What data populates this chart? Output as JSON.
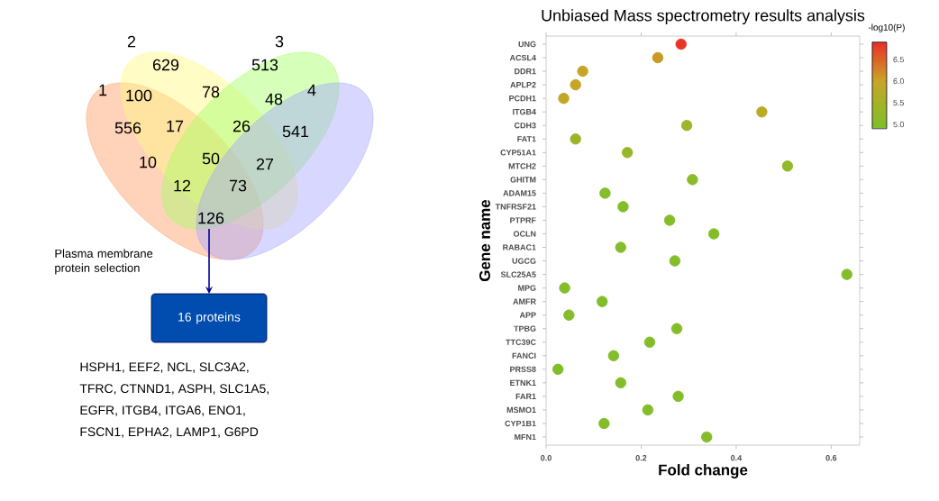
{
  "chart_data": [
    {
      "type": "other",
      "categories": [
        "1",
        "2",
        "3",
        "4"
      ],
      "annotations": [
        "629",
        "513",
        "100",
        "78",
        "48",
        "556",
        "17",
        "26",
        "541",
        "10",
        "50",
        "27",
        "12",
        "73",
        "126",
        "Plasma membrane protein selection",
        "16 proteins",
        "HSPH1, EEF2, NCL, SLC3A2,",
        "TFRC, CTNND1, ASPH, SLC1A5,",
        "EGFR, ITGB4, ITGA6, ENO1,",
        "FSCN1, EPHA2, LAMP1, G6PD"
      ]
    },
    {
      "type": "scatter",
      "title": "Unbiased Mass spectrometry results analysis",
      "xlabel": "Fold change",
      "ylabel": "Gene name",
      "clabel": "-log10(P)",
      "orientation": "horizontal",
      "categories": [
        "UNG",
        "ACSL4",
        "DDR1",
        "APLP2",
        "PCDH1",
        "ITGB4",
        "CDH3",
        "FAT1",
        "CYP51A1",
        "MTCH2",
        "GHITM",
        "ADAM15",
        "TNFRSF21",
        "PTPRF",
        "OCLN",
        "RABAC1",
        "UGCG",
        "SLC25A5",
        "MPG",
        "AMFR",
        "APP",
        "TPBG",
        "TTC39C",
        "FANCI",
        "PRSS8",
        "ETNK1",
        "FAR1",
        "MSMO1",
        "CYP1B1",
        "MFN1"
      ],
      "values": [
        0.284,
        0.235,
        0.077,
        0.062,
        0.037,
        0.454,
        0.296,
        0.062,
        0.171,
        0.508,
        0.308,
        0.124,
        0.162,
        0.26,
        0.353,
        0.157,
        0.271,
        0.633,
        0.039,
        0.118,
        0.048,
        0.275,
        0.218,
        0.142,
        0.025,
        0.157,
        0.278,
        0.214,
        0.122,
        0.338
      ],
      "cvalues": [
        6.85,
        6.1,
        6.0,
        6.0,
        5.9,
        5.8,
        5.4,
        5.3,
        5.3,
        5.2,
        5.1,
        5.0,
        5.0,
        5.0,
        5.0,
        5.0,
        5.0,
        5.0,
        5.0,
        5.0,
        5.0,
        5.0,
        5.0,
        5.0,
        5.0,
        5.0,
        5.0,
        5.0,
        5.0,
        5.0
      ],
      "xlim": [
        0,
        0.66
      ],
      "xticks": [
        {
          "value": 0,
          "label": "0.0"
        },
        {
          "value": 0.2,
          "label": "0.2"
        },
        {
          "value": 0.4,
          "label": "0.4"
        },
        {
          "value": 0.6,
          "label": "0.6"
        }
      ],
      "clim": [
        4.9,
        6.9
      ],
      "cticks": [
        {
          "value": 5,
          "label": "5.0"
        },
        5.5,
        {
          "value": 6,
          "label": "6.0"
        },
        6.5
      ],
      "marker": "circle"
    }
  ]
}
